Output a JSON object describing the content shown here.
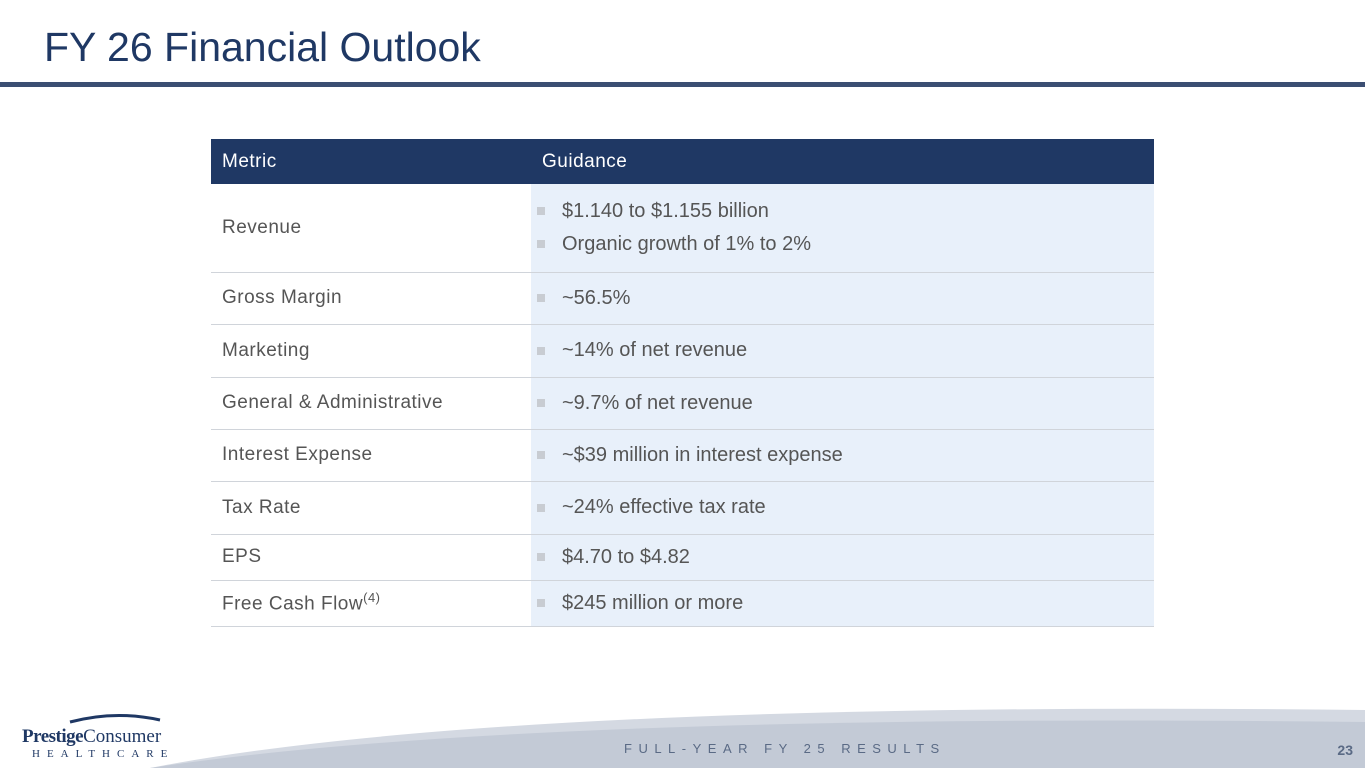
{
  "header": {
    "title": "FY 26 Financial Outlook"
  },
  "table": {
    "columns": [
      "Metric",
      "Guidance"
    ],
    "rows": [
      {
        "metric": "Revenue",
        "guidance": [
          "$1.140 to $1.155 billion",
          "Organic growth of 1% to 2%"
        ]
      },
      {
        "metric": "Gross Margin",
        "guidance": [
          "~56.5%"
        ]
      },
      {
        "metric": "Marketing",
        "guidance": [
          "~14% of net revenue"
        ]
      },
      {
        "metric": "General & Administrative",
        "guidance": [
          "~9.7% of net revenue"
        ]
      },
      {
        "metric": "Interest Expense",
        "guidance": [
          "~$39 million in interest expense"
        ]
      },
      {
        "metric": "Tax Rate",
        "guidance": [
          "~24% effective tax rate"
        ]
      },
      {
        "metric": "EPS",
        "guidance": [
          "$4.70 to $4.82"
        ]
      },
      {
        "metric": "Free Cash Flow",
        "note": "(4)",
        "guidance": [
          "$245 million or more"
        ]
      }
    ]
  },
  "footer": {
    "logo": {
      "brand": "Prestige",
      "brand2": "Consumer",
      "tagline": "HEALTHCARE"
    },
    "text": "FULL-YEAR FY 25 RESULTS",
    "page": "23"
  }
}
